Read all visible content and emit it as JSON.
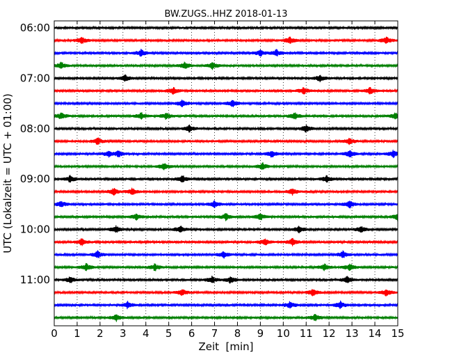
{
  "chart_data": {
    "type": "line",
    "title": "BW.ZUGS..HHZ 2018-01-13",
    "xlabel": "Zeit  [min]",
    "ylabel": "UTC (Lokalzeit = UTC + 01:00)",
    "xlim": [
      0,
      15
    ],
    "x_ticks": [
      0,
      1,
      2,
      3,
      4,
      5,
      6,
      7,
      8,
      9,
      10,
      11,
      12,
      13,
      14,
      15
    ],
    "y_tick_labels": [
      "06:00",
      "07:00",
      "08:00",
      "09:00",
      "10:00",
      "11:00"
    ],
    "trace_start_times": [
      "06:00",
      "06:15",
      "06:30",
      "06:45",
      "07:00",
      "07:15",
      "07:30",
      "07:45",
      "08:00",
      "08:15",
      "08:30",
      "08:45",
      "09:00",
      "09:15",
      "09:30",
      "09:45",
      "10:00",
      "10:15",
      "10:30",
      "10:45",
      "11:00",
      "11:15",
      "11:30",
      "11:45"
    ],
    "trace_colors": [
      "#000000",
      "#ff0000",
      "#0000ff",
      "#008000"
    ],
    "vertical_grid": "dotted",
    "trace_events_minutes": [
      [],
      [
        1.2,
        10.3,
        14.5
      ],
      [
        9.0,
        9.7,
        3.8
      ],
      [
        0.3,
        6.9,
        5.7
      ],
      [
        3.1,
        11.6
      ],
      [
        5.2,
        10.9,
        13.8
      ],
      [
        5.6,
        7.8
      ],
      [
        0.3,
        3.8,
        4.9,
        10.5,
        14.9
      ],
      [
        5.9,
        11.0
      ],
      [
        1.9,
        12.9
      ],
      [
        2.4,
        2.8,
        9.5,
        12.9,
        14.8
      ],
      [
        4.8,
        9.1
      ],
      [
        0.7,
        5.6,
        11.9
      ],
      [
        2.6,
        3.4,
        10.4
      ],
      [
        0.3,
        7.0,
        12.9
      ],
      [
        3.6,
        7.5,
        9.0,
        15.0
      ],
      [
        2.7,
        5.5,
        10.7,
        13.4
      ],
      [
        1.2,
        9.2,
        10.4
      ],
      [
        1.9,
        7.4,
        12.6
      ],
      [
        1.4,
        4.4,
        11.8,
        12.9
      ],
      [
        0.7,
        6.9,
        7.7,
        12.8
      ],
      [
        5.6,
        11.3,
        14.5
      ],
      [
        3.2,
        10.3,
        12.5
      ],
      [
        2.7,
        11.4
      ]
    ]
  }
}
